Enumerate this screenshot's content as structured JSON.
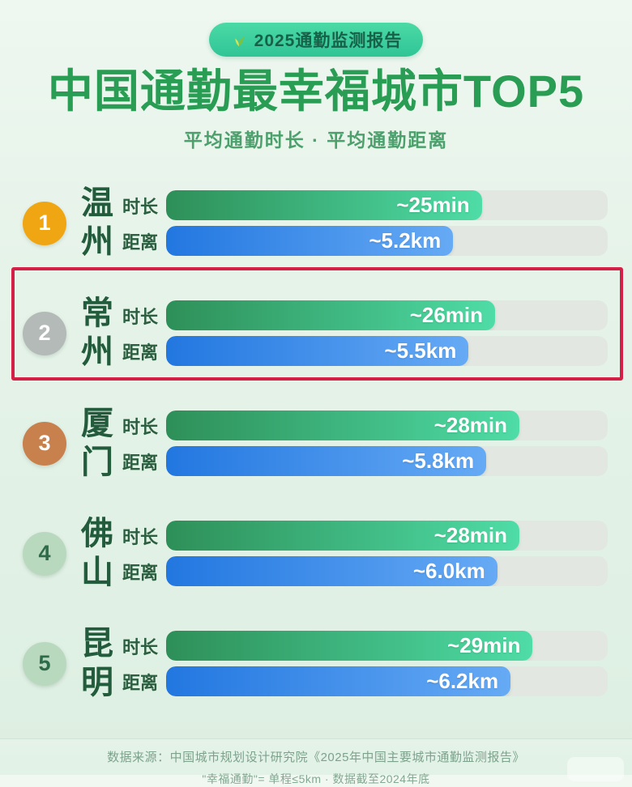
{
  "badge": {
    "icon": "leaf-icon",
    "label": "2025通勤监测报告"
  },
  "title": "中国通勤最幸福城市TOP5",
  "subtitle": "平均通勤时长 · 平均通勤距离",
  "bar_labels": {
    "duration": "时长",
    "distance": "距离"
  },
  "colors": {
    "badge_bg": "#3ccd9e",
    "title_green": "#2a9d54",
    "bar_duration_start": "#2e8f58",
    "bar_duration_end": "#4fdca6",
    "bar_distance_start": "#2277e0",
    "bar_distance_end": "#66aaf5",
    "track": "#e2e8e1",
    "highlight_border": "#d42047"
  },
  "rows": [
    {
      "rank": "1",
      "rank_bg": "#f0a513",
      "rank_color": "#ffffff",
      "city": "温州",
      "duration_label": "~25min",
      "duration_pct": 71.5,
      "distance_label": "~5.2km",
      "distance_pct": 65,
      "highlighted": false
    },
    {
      "rank": "2",
      "rank_bg": "#b4bab7",
      "rank_color": "#ffffff",
      "city": "常州",
      "duration_label": "~26min",
      "duration_pct": 74.5,
      "distance_label": "~5.5km",
      "distance_pct": 68.5,
      "highlighted": true
    },
    {
      "rank": "3",
      "rank_bg": "#c8804d",
      "rank_color": "#ffffff",
      "city": "厦门",
      "duration_label": "~28min",
      "duration_pct": 80,
      "distance_label": "~5.8km",
      "distance_pct": 72.5,
      "highlighted": false
    },
    {
      "rank": "4",
      "rank_bg": "#b9d9bf",
      "rank_color": "#2e6b48",
      "city": "佛山",
      "duration_label": "~28min",
      "duration_pct": 80,
      "distance_label": "~6.0km",
      "distance_pct": 75,
      "highlighted": false
    },
    {
      "rank": "5",
      "rank_bg": "#b9d9bf",
      "rank_color": "#2e6b48",
      "city": "昆明",
      "duration_label": "~29min",
      "duration_pct": 83,
      "distance_label": "~6.2km",
      "distance_pct": 78,
      "highlighted": false
    }
  ],
  "footer": {
    "line1": "数据来源：中国城市规划设计研究院《2025年中国主要城市通勤监测报告》",
    "line2": "\"幸福通勤\"= 单程≤5km · 数据截至2024年底"
  },
  "chart_data": {
    "type": "bar",
    "orientation": "horizontal",
    "title": "中国通勤最幸福城市TOP5",
    "subtitle": "平均通勤时长 · 平均通勤距离",
    "badge": "2025通勤监测报告",
    "categories": [
      "温州",
      "常州",
      "厦门",
      "佛山",
      "昆明"
    ],
    "ranks": [
      1,
      2,
      3,
      4,
      5
    ],
    "series": [
      {
        "name": "平均通勤时长",
        "unit": "min",
        "values": [
          25,
          26,
          28,
          28,
          29
        ],
        "labels": [
          "~25min",
          "~26min",
          "~28min",
          "~28min",
          "~29min"
        ],
        "color": "green-gradient"
      },
      {
        "name": "平均通勤距离",
        "unit": "km",
        "values": [
          5.2,
          5.5,
          5.8,
          6.0,
          6.2
        ],
        "labels": [
          "~5.2km",
          "~5.5km",
          "~5.8km",
          "~6.0km",
          "~6.2km"
        ],
        "color": "blue-gradient"
      }
    ],
    "value_labels_inside_bars": true,
    "grid": false,
    "legend": false,
    "annotations": [
      "第2名 常州 用红色方框高亮标注"
    ]
  }
}
